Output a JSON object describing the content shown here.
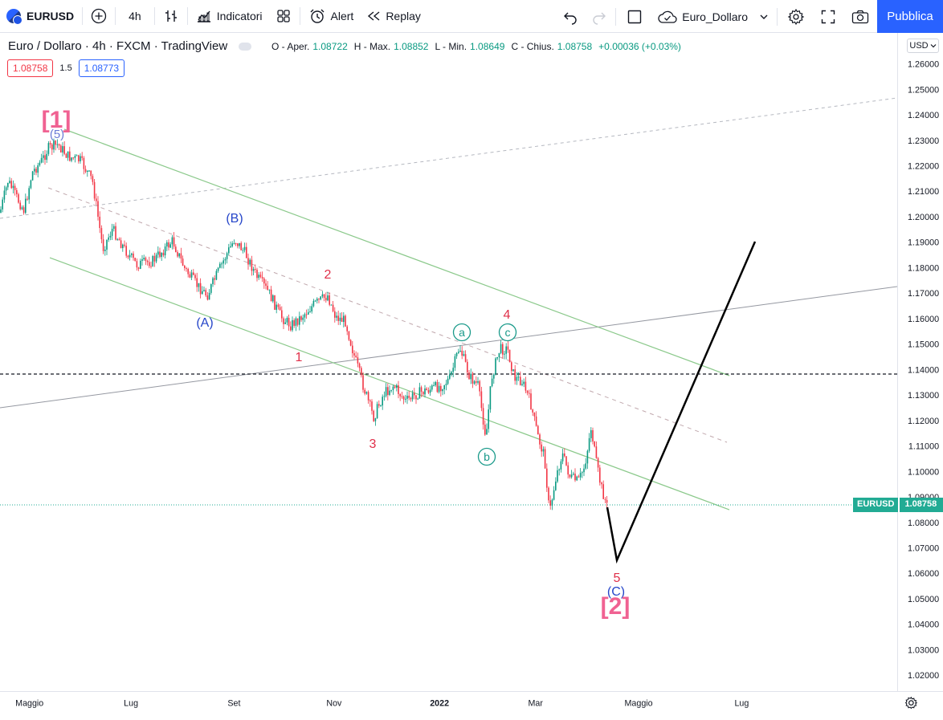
{
  "toolbar": {
    "symbol": "EURUSD",
    "interval": "4h",
    "indicators_label": "Indicatori",
    "alert_label": "Alert",
    "replay_label": "Replay",
    "layout_name": "Euro_Dollaro",
    "publish_label": "Pubblica"
  },
  "legend": {
    "title": "Euro / Dollaro · 4h · FXCM · TradingView",
    "open_label": "O - Aper.",
    "open": "1.08722",
    "high_label": "H - Max.",
    "high": "1.08852",
    "low_label": "L - Min.",
    "low": "1.08649",
    "close_label": "C - Chius.",
    "close": "1.08758",
    "change": "+0.00036 (+0.03%)",
    "sell_price": "1.08758",
    "spread": "1.5",
    "buy_price": "1.08773"
  },
  "price_axis": {
    "currency": "USD",
    "labels": [
      "1.26000",
      "1.25000",
      "1.24000",
      "1.23000",
      "1.22000",
      "1.21000",
      "1.20000",
      "1.19000",
      "1.18000",
      "1.17000",
      "1.16000",
      "1.15000",
      "1.14000",
      "1.13000",
      "1.12000",
      "1.11000",
      "1.10000",
      "1.09000",
      "1.08000",
      "1.07000",
      "1.06000",
      "1.05000",
      "1.04000",
      "1.03000",
      "1.02000"
    ],
    "last_symbol": "EURUSD",
    "last_price": "1.08758"
  },
  "time_axis": {
    "labels": [
      "Maggio",
      "Lug",
      "Set",
      "Nov",
      "2022",
      "Mar",
      "Maggio",
      "Lug"
    ]
  },
  "wave_labels": {
    "w1_big": "[1]",
    "w5_paren": "(5)",
    "wB": "(B)",
    "wA": "(A)",
    "w1": "1",
    "w2": "2",
    "w3": "3",
    "w4": "4",
    "wa": "a",
    "wb": "b",
    "wc": "c",
    "w5": "5",
    "wC": "(C)",
    "w2_big": "[2]"
  },
  "colors": {
    "up": "#089981",
    "down": "#f23645",
    "accent": "#2962ff",
    "channel": "#8bc98b",
    "wave_red": "#e0304a",
    "wave_blue": "#2545c9",
    "wave_teal": "#1a9a8a",
    "wave_pink": "#f06292"
  }
}
